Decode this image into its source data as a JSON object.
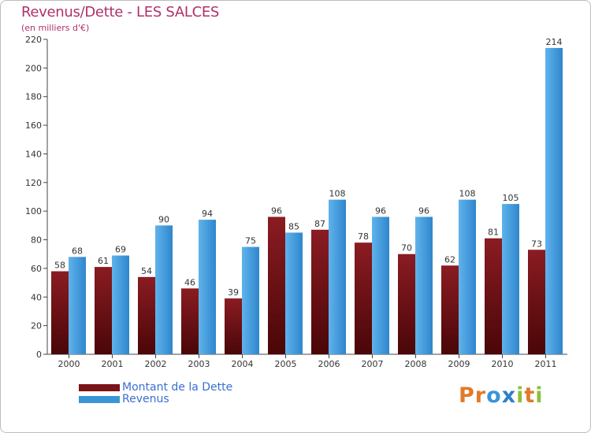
{
  "colors": {
    "debt": "#7a1418",
    "revenue": "#3a95d8",
    "title": "#b0306a",
    "legend_text": "#3a6fd0"
  },
  "logo": {
    "text": "Proxiti",
    "letters": [
      {
        "ch": "P",
        "color": "#e07b2a"
      },
      {
        "ch": "r",
        "color": "#e07b2a"
      },
      {
        "ch": "o",
        "color": "#3a95d8"
      },
      {
        "ch": "x",
        "color": "#2e7fc8"
      },
      {
        "ch": "i",
        "color": "#8fbf3a"
      },
      {
        "ch": "t",
        "color": "#e07b2a"
      },
      {
        "ch": "i",
        "color": "#8fbf3a"
      }
    ]
  },
  "chart_data": {
    "type": "bar",
    "title": "Revenus/Dette - LES SALCES",
    "subtitle": "(en milliers d'€)",
    "xlabel": "",
    "ylabel": "",
    "ylim": [
      0,
      220
    ],
    "yticks": [
      0,
      20,
      40,
      60,
      80,
      100,
      120,
      140,
      160,
      180,
      200,
      220
    ],
    "grid": false,
    "legend_position": "bottom-left",
    "categories": [
      "2000",
      "2001",
      "2002",
      "2003",
      "2004",
      "2005",
      "2006",
      "2007",
      "2008",
      "2009",
      "2010",
      "2011"
    ],
    "series": [
      {
        "name": "Montant de la Dette",
        "values": [
          58,
          61,
          54,
          46,
          39,
          96,
          87,
          78,
          70,
          62,
          81,
          73
        ]
      },
      {
        "name": "Revenus",
        "values": [
          68,
          69,
          90,
          94,
          75,
          85,
          108,
          96,
          96,
          108,
          105,
          214
        ]
      }
    ]
  }
}
